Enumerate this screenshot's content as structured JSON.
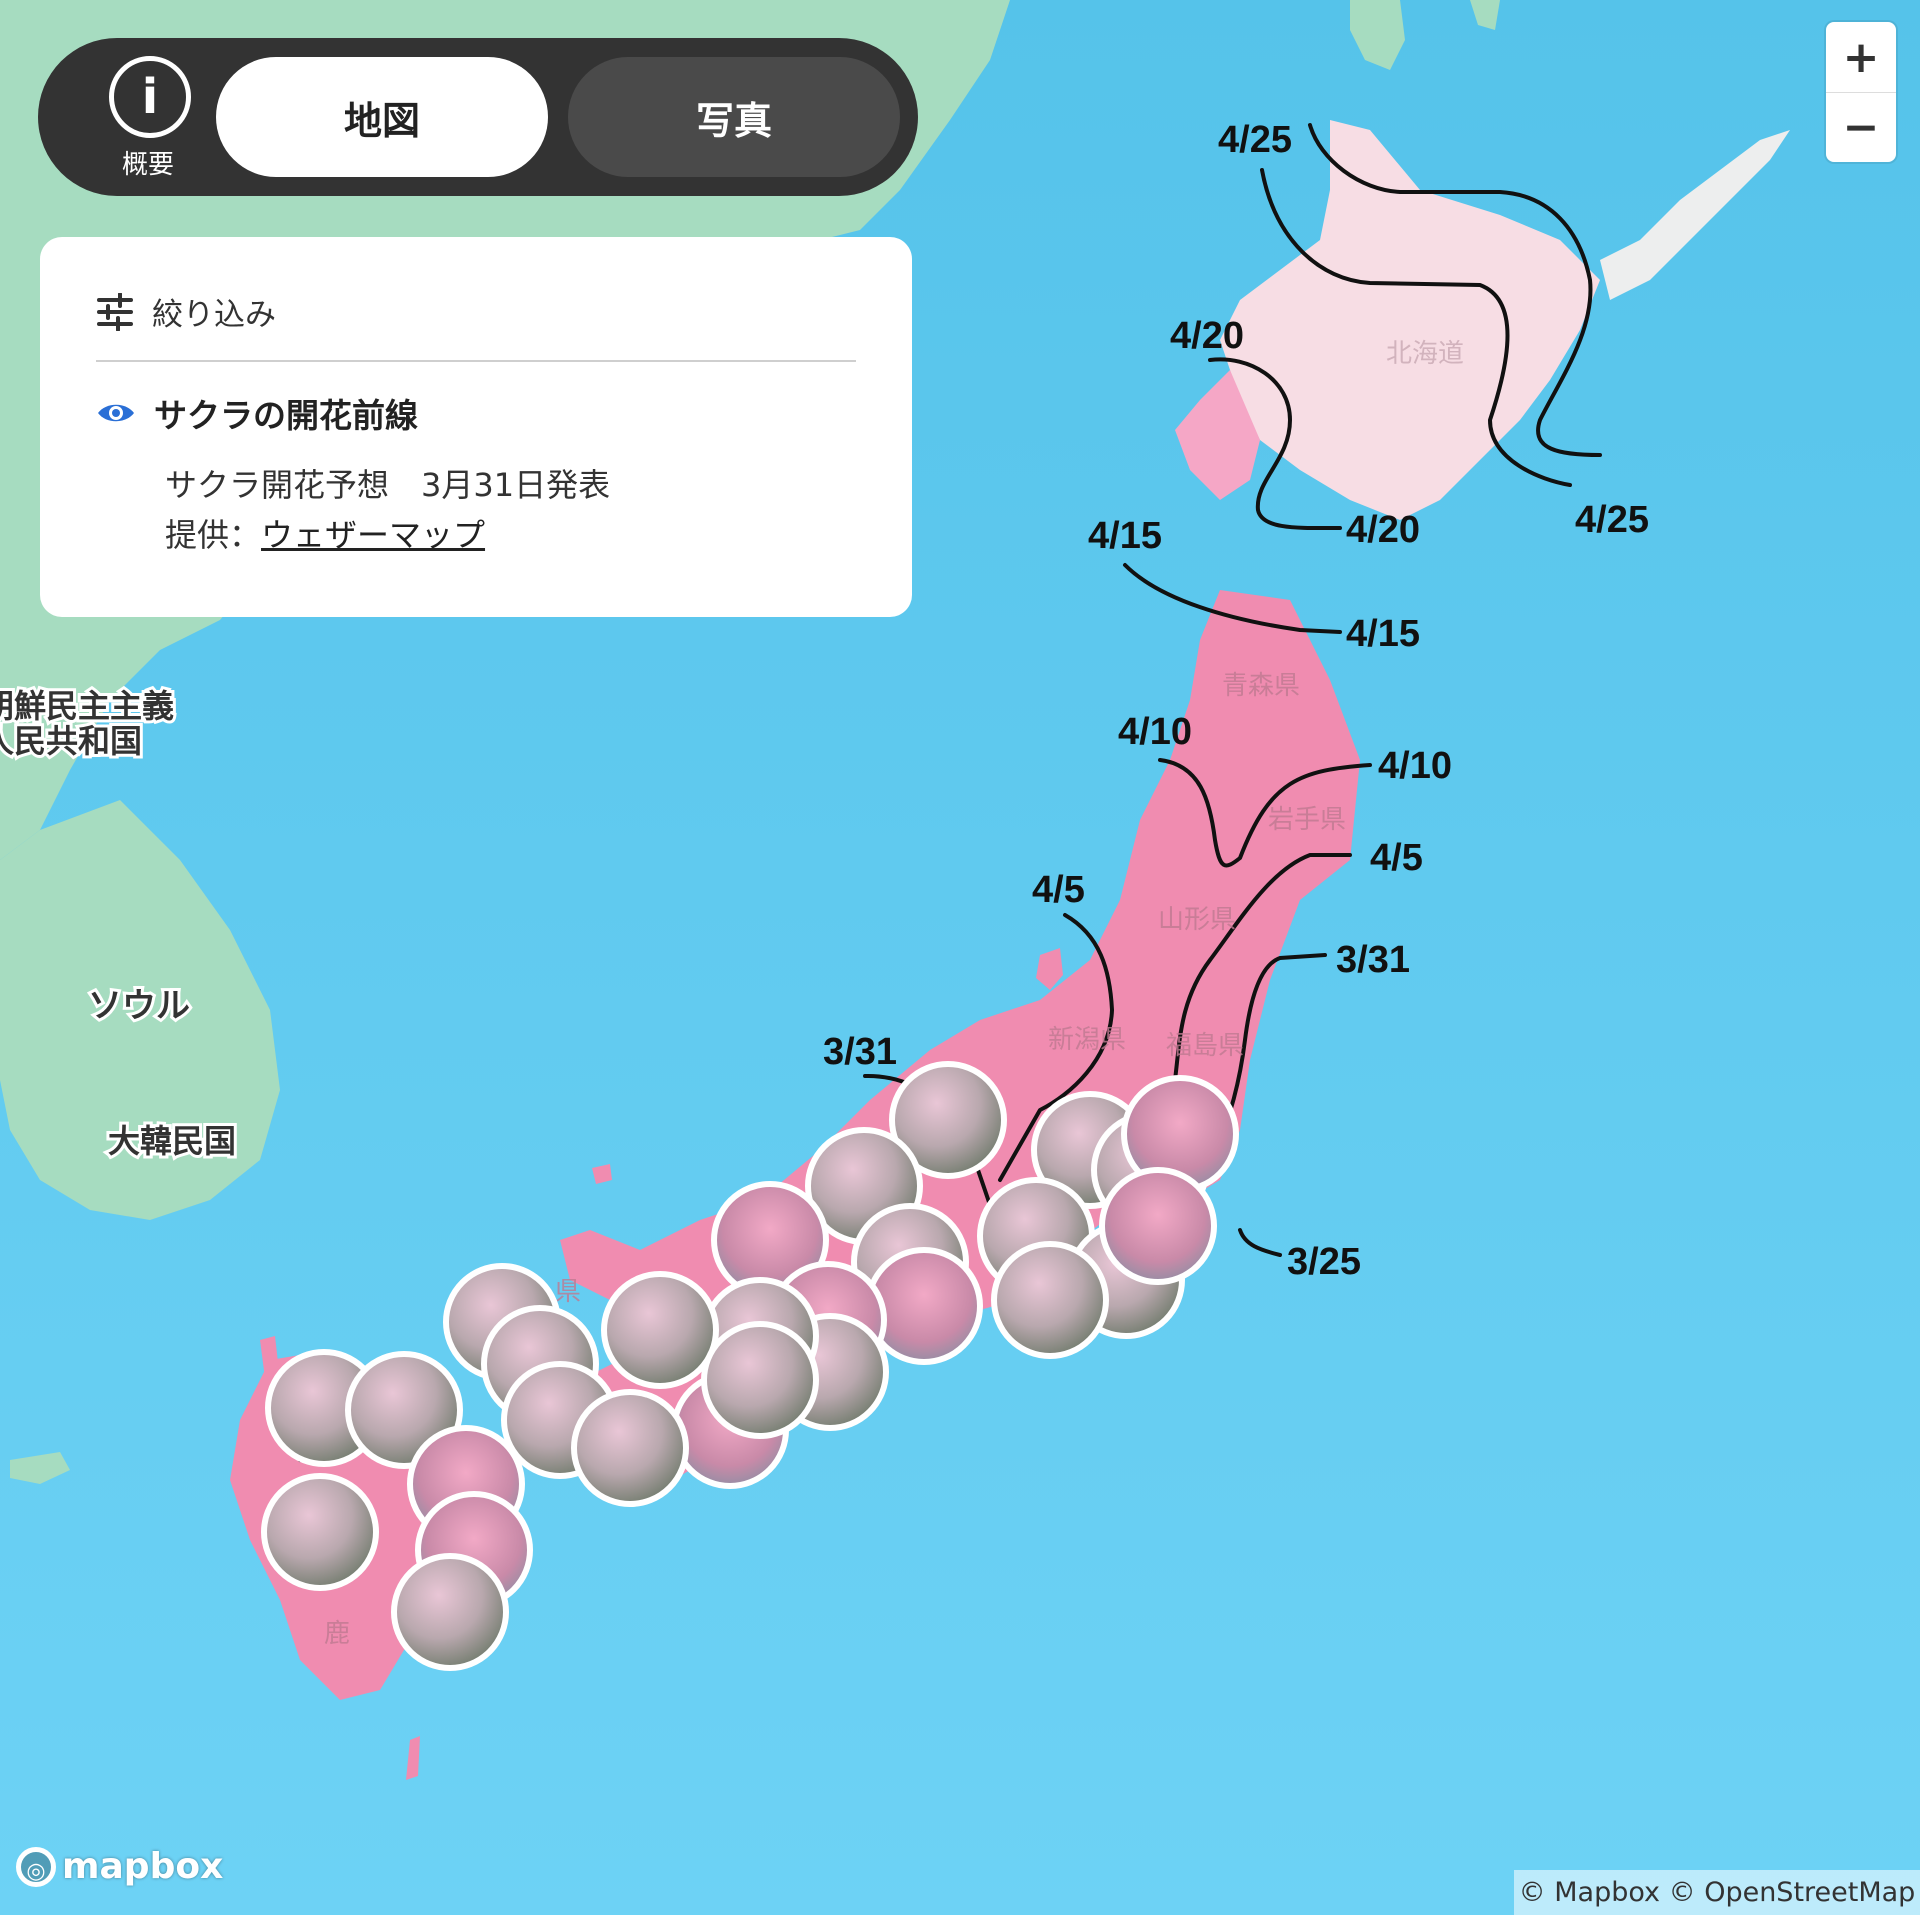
{
  "header": {
    "info_label": "概要",
    "tabs": [
      {
        "label": "地図",
        "active": true
      },
      {
        "label": "写真",
        "active": false
      }
    ]
  },
  "filter_panel": {
    "title": "絞り込み",
    "layer": {
      "name": "サクラの開花前線",
      "visible": true,
      "forecast_text": "サクラ開花予想　3月31日発表",
      "provider_prefix": "提供：",
      "provider_link": "ウェザーマップ"
    }
  },
  "map": {
    "country_labels": [
      "朝鮮民主主義",
      "人民共和国",
      "大韓民国"
    ],
    "city_labels": [
      "ソウル"
    ],
    "prefecture_labels": [
      "北海道",
      "青森県",
      "岩手県",
      "山形県",
      "新潟県",
      "福島県",
      "鹿",
      "県"
    ],
    "front_lines": [
      {
        "date": "4/25"
      },
      {
        "date": "4/20"
      },
      {
        "date": "4/15"
      },
      {
        "date": "4/10"
      },
      {
        "date": "4/5"
      },
      {
        "date": "3/31"
      },
      {
        "date": "3/25"
      }
    ],
    "colors": {
      "sea": "#5ec8ee",
      "land": "#a6dcc0",
      "japan_bloom": "#f08cb0",
      "hokkaido": "#f7dde4",
      "front_line": "#111111",
      "panel": "#333333",
      "accent_eye": "#2a6fd6"
    }
  },
  "zoom": {
    "in_label": "+",
    "out_label": "−"
  },
  "footer": {
    "logo_text": "mapbox",
    "attribution": "© Mapbox © OpenStreetMap"
  }
}
